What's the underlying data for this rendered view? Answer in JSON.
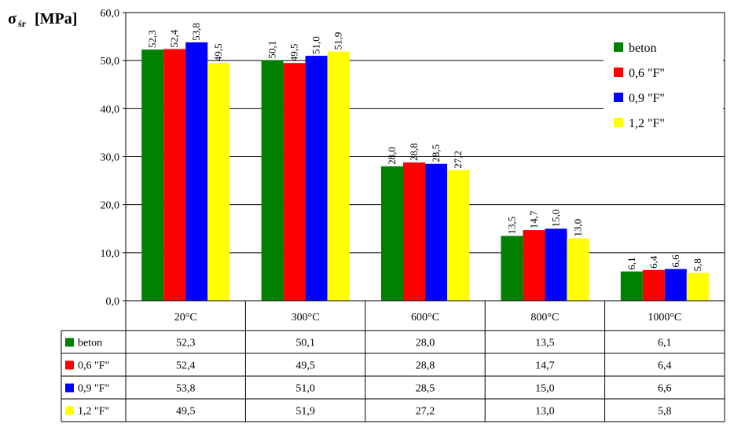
{
  "chart_data": {
    "type": "bar",
    "ylabel_main": "σ",
    "ylabel_sub": "śr",
    "ylabel_unit": "[MPa]",
    "ylim": [
      0,
      60
    ],
    "yticks": [
      "0,0",
      "10,0",
      "20,0",
      "30,0",
      "40,0",
      "50,0",
      "60,0"
    ],
    "categories": [
      "20°C",
      "300°C",
      "600°C",
      "800°C",
      "1000°C"
    ],
    "grid": true,
    "legend_position": "right",
    "series": [
      {
        "name": "beton",
        "color": "#008000",
        "values": [
          52.3,
          50.1,
          28.0,
          13.5,
          6.1
        ],
        "labels": [
          "52,3",
          "50,1",
          "28,0",
          "13,5",
          "6,1"
        ]
      },
      {
        "name": "0,6 \"F\"",
        "color": "#ff0000",
        "values": [
          52.4,
          49.5,
          28.8,
          14.7,
          6.4
        ],
        "labels": [
          "52,4",
          "49,5",
          "28,8",
          "14,7",
          "6,4"
        ]
      },
      {
        "name": "0,9 \"F\"",
        "color": "#0000ff",
        "values": [
          53.8,
          51.0,
          28.5,
          15.0,
          6.6
        ],
        "labels": [
          "53,8",
          "51,0",
          "28,5",
          "15,0",
          "6,6"
        ]
      },
      {
        "name": "1,2 \"F\"",
        "color": "#ffff00",
        "values": [
          49.5,
          51.9,
          27.2,
          13.0,
          5.8
        ],
        "labels": [
          "49,5",
          "51,9",
          "27,2",
          "13,0",
          "5,8"
        ]
      }
    ]
  }
}
